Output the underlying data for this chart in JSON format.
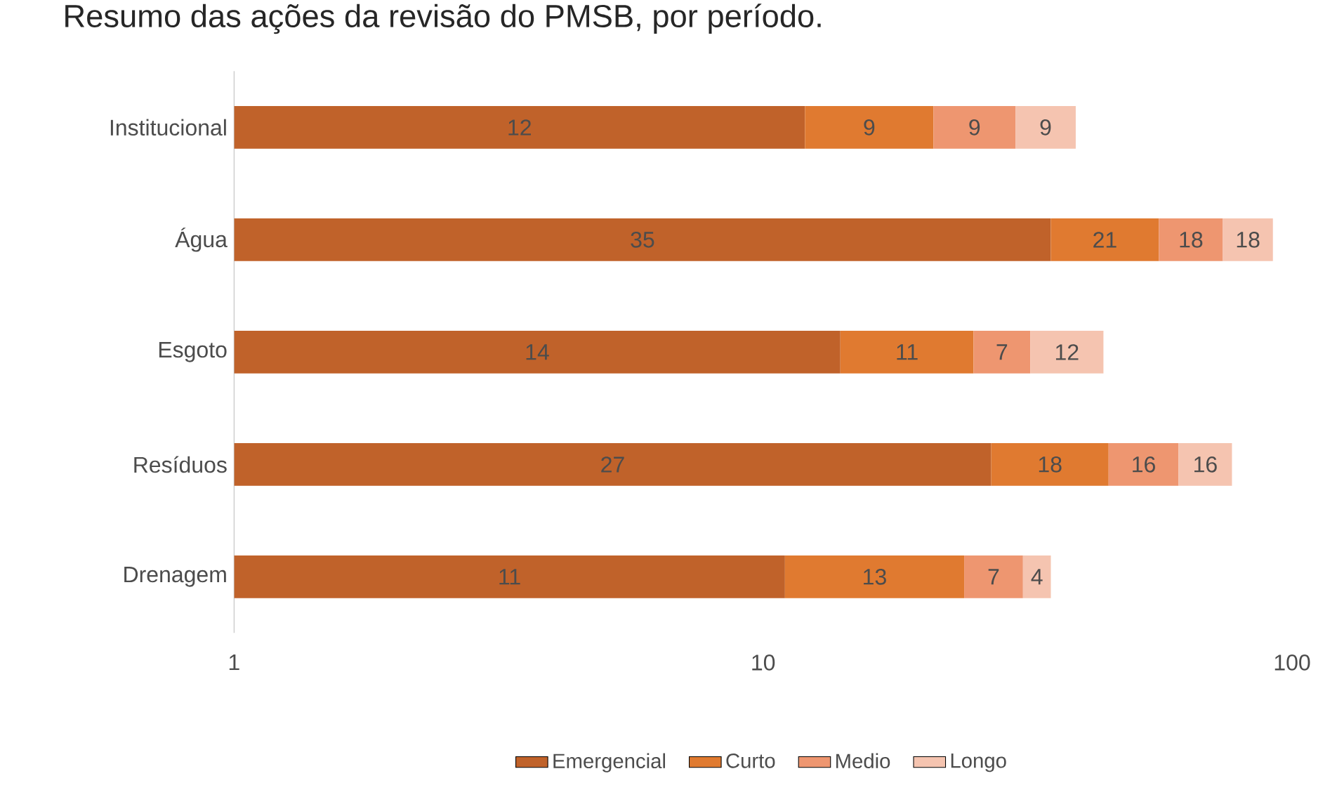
{
  "chart_data": {
    "type": "bar",
    "orientation": "horizontal",
    "stacked": true,
    "log": "x",
    "title": "Resumo das ações da revisão do PMSB, por período.",
    "categories": [
      "Institucional",
      "Água",
      "Esgoto",
      "Resíduos",
      "Drenagem"
    ],
    "xlim": [
      1,
      100
    ],
    "xticks": [
      1,
      10,
      100
    ],
    "series": [
      {
        "name": "Emergencial",
        "color": "#c0622a",
        "values": [
          12,
          35,
          14,
          27,
          11
        ]
      },
      {
        "name": "Curto",
        "color": "#e07a30",
        "values": [
          9,
          21,
          11,
          18,
          13
        ]
      },
      {
        "name": "Medio",
        "color": "#ee9670",
        "values": [
          9,
          18,
          7,
          16,
          7
        ]
      },
      {
        "name": "Longo",
        "color": "#f5c4b0",
        "values": [
          9,
          18,
          12,
          16,
          4
        ]
      }
    ],
    "data_labels": true,
    "legend": "bottom",
    "grid": false
  }
}
